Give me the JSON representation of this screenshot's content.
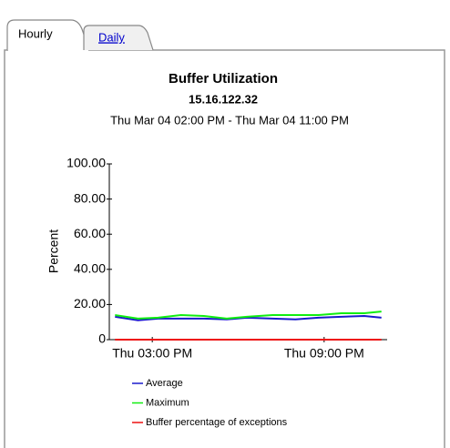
{
  "tabs": [
    "Hourly",
    "Daily"
  ],
  "chart_data": {
    "type": "line",
    "title": "Buffer Utilization",
    "subtitle": "15.16.122.32",
    "date_range": "Thu Mar 04 02:00 PM - Thu Mar 04 11:00 PM",
    "ylabel": "Percent",
    "x": [
      13.7,
      14.5,
      15.2,
      16.0,
      16.8,
      17.6,
      18.3,
      19.2,
      20.0,
      20.8,
      21.6,
      22.4,
      23.0
    ],
    "xlim": [
      13.5,
      23.2
    ],
    "xticks": [
      {
        "value": 15,
        "label": "Thu 03:00 PM"
      },
      {
        "value": 21,
        "label": "Thu 09:00 PM"
      }
    ],
    "ylim": [
      0,
      100
    ],
    "yticks": [
      0,
      {
        "value": 20,
        "label": "20.00"
      },
      {
        "value": 40,
        "label": "40.00"
      },
      {
        "value": 60,
        "label": "60.00"
      },
      {
        "value": 80,
        "label": "80.00"
      },
      {
        "value": 100,
        "label": "100.00"
      }
    ],
    "grid": false,
    "series": [
      {
        "name": "Average",
        "color": "#1a1acc",
        "values": [
          13,
          11,
          12,
          12,
          12,
          11.5,
          12.5,
          12,
          11.5,
          12.5,
          13,
          13.5,
          12.5
        ]
      },
      {
        "name": "Maximum",
        "color": "#11ee11",
        "values": [
          14,
          12,
          12.5,
          14,
          13.5,
          12,
          13,
          14,
          14,
          14,
          15,
          15,
          16
        ]
      },
      {
        "name": "Buffer percentage of exceptions",
        "color": "#ee1111",
        "values": [
          0,
          0,
          0,
          0,
          0,
          0,
          0,
          0,
          0,
          0,
          0,
          0,
          0
        ]
      }
    ]
  }
}
